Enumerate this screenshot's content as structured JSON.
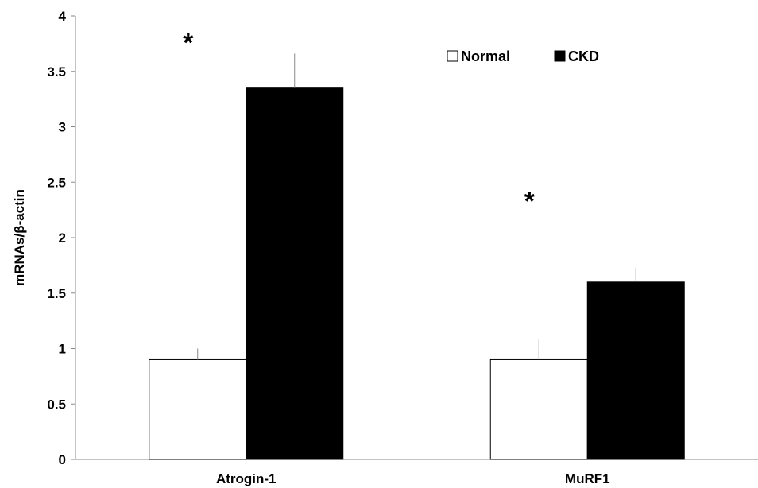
{
  "chart_data": {
    "type": "bar",
    "title": "",
    "xlabel": "",
    "ylabel": "mRNAs/β-actin",
    "ylim": [
      0,
      4
    ],
    "yticks": [
      "0",
      "0.5",
      "1",
      "1.5",
      "2",
      "2.5",
      "3",
      "3.5",
      "4"
    ],
    "categories": [
      "Atrogin-1",
      "MuRF1"
    ],
    "series": [
      {
        "name": "Normal",
        "values": [
          0.9,
          0.9
        ],
        "errors": [
          0.1,
          0.18
        ],
        "color": "#ffffff"
      },
      {
        "name": "CKD",
        "values": [
          3.35,
          1.6
        ],
        "errors": [
          0.31,
          0.13
        ],
        "color": "#000000"
      }
    ],
    "annotations": [
      {
        "text": "*",
        "category": "Atrogin-1",
        "y": 3.85
      },
      {
        "text": "*",
        "category": "MuRF1",
        "y": 2.42
      }
    ],
    "legend": {
      "position": "top-right"
    },
    "grid": false
  }
}
